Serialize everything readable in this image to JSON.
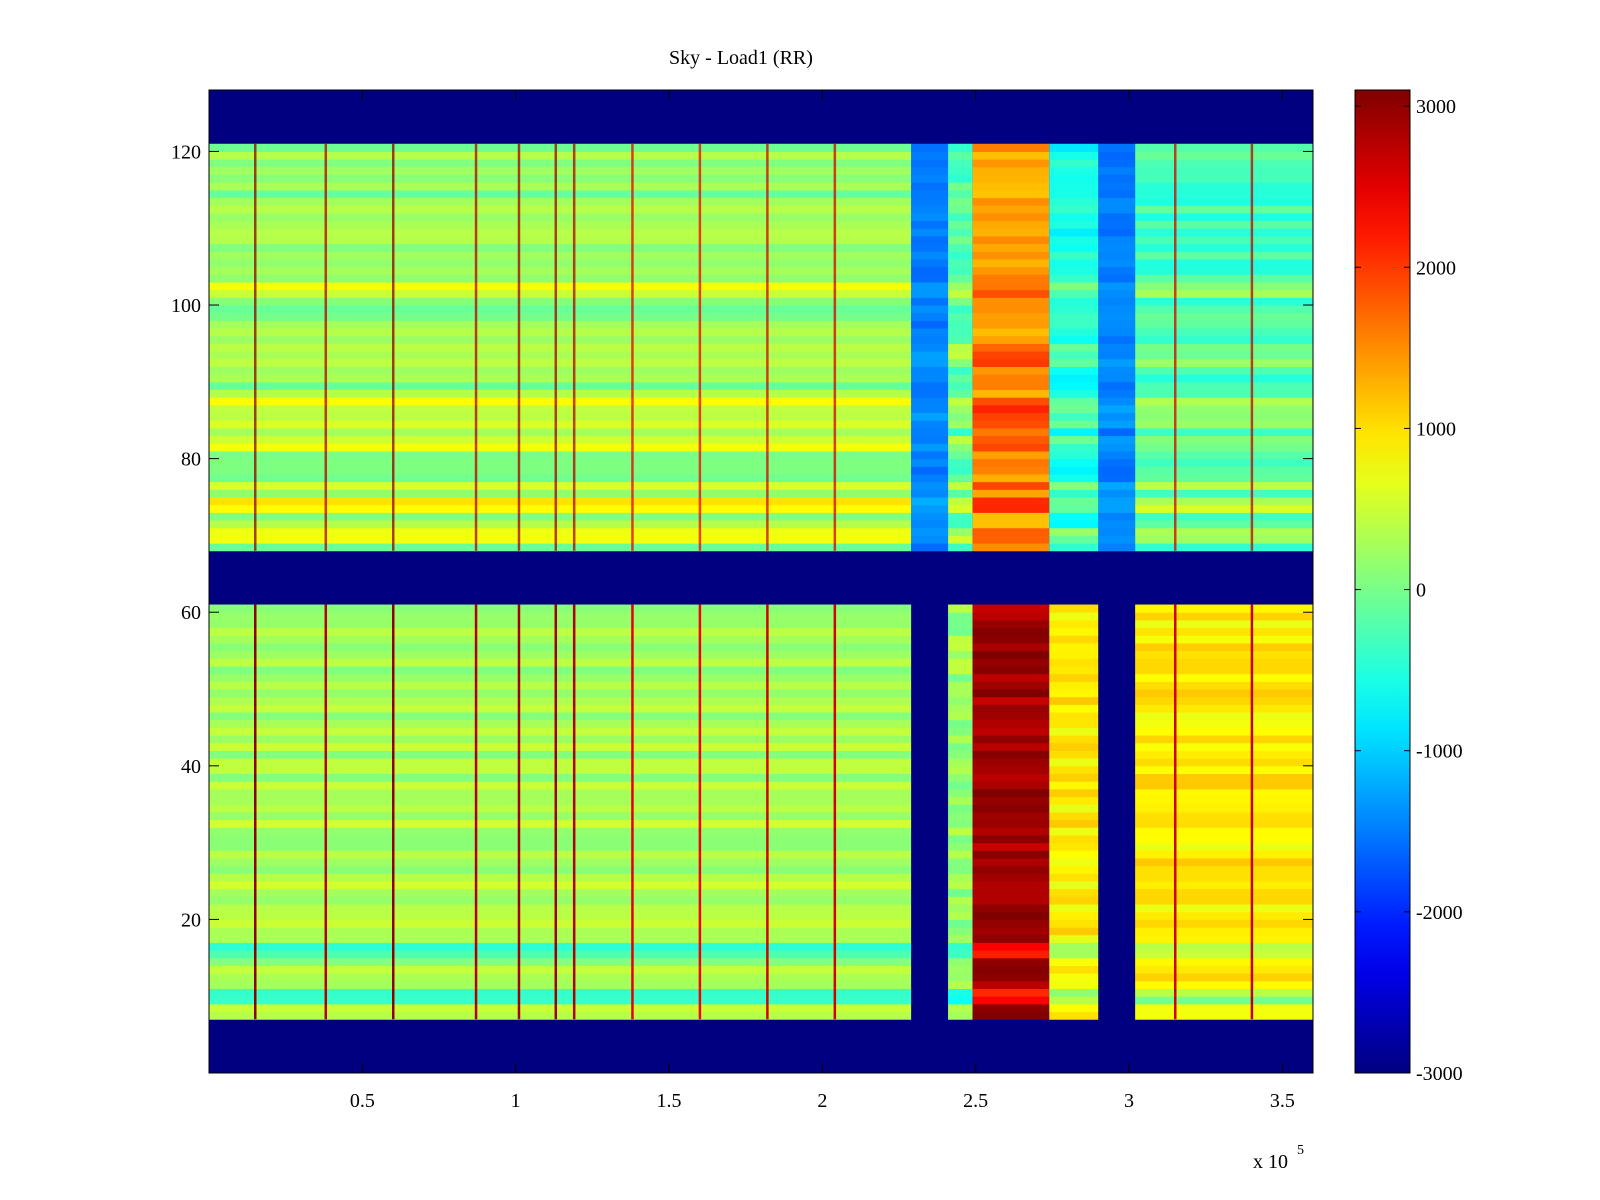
{
  "chart_data": {
    "type": "heatmap",
    "title": "Sky - Load1 (RR)",
    "xlabel": "",
    "ylabel": "",
    "x_multiplier": "x 10",
    "x_multiplier_exponent": "5",
    "xlim": [
      0,
      360000
    ],
    "ylim": [
      0,
      128
    ],
    "xticks": [
      50000,
      100000,
      150000,
      200000,
      250000,
      300000,
      350000
    ],
    "xtick_labels": [
      "0.5",
      "1",
      "1.5",
      "2",
      "2.5",
      "3",
      "3.5"
    ],
    "yticks": [
      20,
      40,
      60,
      80,
      100,
      120
    ],
    "ytick_labels": [
      "20",
      "40",
      "60",
      "80",
      "100",
      "120"
    ],
    "colorbar": {
      "colormap": "jet",
      "range": [
        -3000,
        3100
      ],
      "ticks": [
        -3000,
        -2000,
        -1000,
        0,
        1000,
        2000,
        3000
      ],
      "tick_labels": [
        "-3000",
        "-2000",
        "-1000",
        "0",
        "1000",
        "2000",
        "3000"
      ]
    },
    "masked_value": -3000,
    "masked_rows": [
      [
        0,
        7
      ],
      [
        61,
        68
      ],
      [
        121,
        128
      ]
    ],
    "column_segments": [
      {
        "x_start": 0,
        "x_end": 229000,
        "lower_band": 300,
        "upper_band": 150
      },
      {
        "x_start": 229000,
        "x_end": 241000,
        "lower_band": -3000,
        "upper_band": -1500
      },
      {
        "x_start": 241000,
        "x_end": 249000,
        "lower_band": 200,
        "upper_band": -200
      },
      {
        "x_start": 249000,
        "x_end": 274000,
        "lower_band": 2900,
        "upper_band": 1400
      },
      {
        "x_start": 274000,
        "x_end": 290000,
        "lower_band": 900,
        "upper_band": -600
      },
      {
        "x_start": 290000,
        "x_end": 302000,
        "lower_band": -3000,
        "upper_band": -1500
      },
      {
        "x_start": 302000,
        "x_end": 360000,
        "lower_band": 900,
        "upper_band": -300
      }
    ],
    "row_offsets": [
      {
        "y_start": 69,
        "y_end": 71,
        "value": 600
      },
      {
        "y_start": 73,
        "y_end": 75,
        "value": 700
      },
      {
        "y_start": 76,
        "y_end": 77,
        "value": 500
      },
      {
        "y_start": 81,
        "y_end": 83,
        "value": 400
      },
      {
        "y_start": 84,
        "y_end": 88,
        "value": 500
      },
      {
        "y_start": 92,
        "y_end": 95,
        "value": 400
      },
      {
        "y_start": 101,
        "y_end": 103,
        "value": 400
      },
      {
        "y_start": 9,
        "y_end": 11,
        "value": -700
      },
      {
        "y_start": 15,
        "y_end": 17,
        "value": -500
      }
    ],
    "vertical_streaks": [
      {
        "x": 15000,
        "value": 3000
      },
      {
        "x": 38000,
        "value": 2800
      },
      {
        "x": 60000,
        "value": 3000
      },
      {
        "x": 87000,
        "value": 2800
      },
      {
        "x": 101000,
        "value": 2900
      },
      {
        "x": 113000,
        "value": 2900
      },
      {
        "x": 119000,
        "value": 2800
      },
      {
        "x": 138000,
        "value": 2500
      },
      {
        "x": 160000,
        "value": 2400
      },
      {
        "x": 182000,
        "value": 2600
      },
      {
        "x": 204000,
        "value": 2600
      },
      {
        "x": 315000,
        "value": 2600
      },
      {
        "x": 340000,
        "value": 2700
      }
    ]
  }
}
